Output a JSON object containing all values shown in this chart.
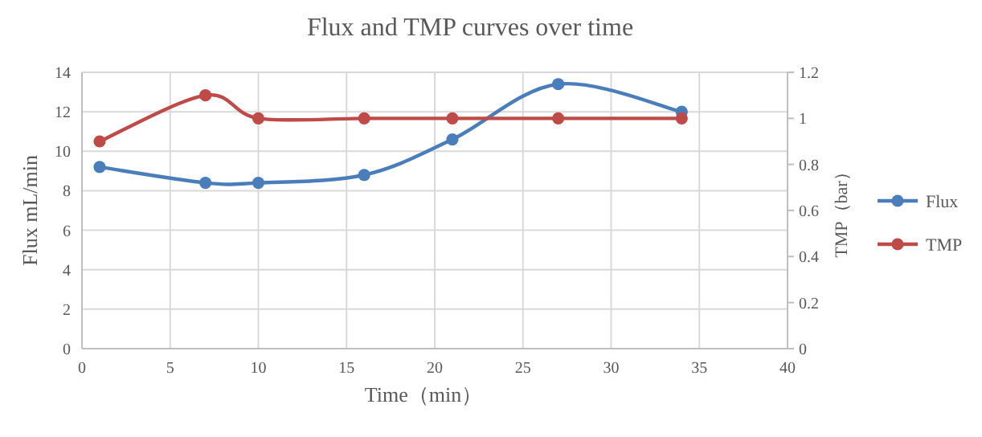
{
  "chart_data": {
    "type": "line",
    "title": "Flux and TMP curves over time",
    "xlabel": "Time（min）",
    "ylabel": "Flux mL/min",
    "y2label": "TMP（bar）",
    "x": [
      1,
      7,
      10,
      16,
      21,
      27,
      34
    ],
    "series": [
      {
        "name": "Flux",
        "color": "#4a7ebb",
        "values": [
          9.2,
          8.4,
          8.4,
          8.8,
          10.6,
          13.4,
          12.0
        ]
      },
      {
        "name": "TMP",
        "color": "#be4b48",
        "values": [
          0.9,
          1.1,
          1.0,
          1.0,
          1.0,
          1.0,
          1.0
        ],
        "axis": "y2"
      }
    ],
    "xlim": [
      0,
      40
    ],
    "xticks": [
      0,
      5,
      10,
      15,
      20,
      25,
      30,
      35,
      40
    ],
    "ylim": [
      0,
      14
    ],
    "yticks": [
      0,
      2,
      4,
      6,
      8,
      10,
      12,
      14
    ],
    "y2lim": [
      0,
      1.2
    ],
    "y2ticks": [
      0,
      0.2,
      0.4,
      0.6,
      0.8,
      1,
      1.2
    ],
    "grid": true,
    "legend": "right",
    "marker": "circle",
    "line_style": "solid"
  }
}
